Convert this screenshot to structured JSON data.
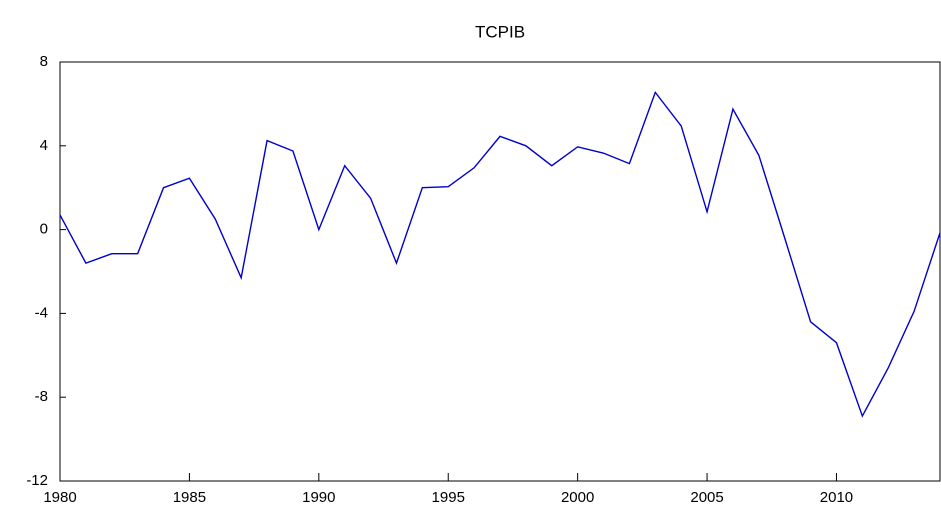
{
  "chart_data": {
    "type": "line",
    "title": "TCPIB",
    "x": [
      1980,
      1981,
      1982,
      1983,
      1984,
      1985,
      1986,
      1987,
      1988,
      1989,
      1990,
      1991,
      1992,
      1993,
      1994,
      1995,
      1996,
      1997,
      1998,
      1999,
      2000,
      2001,
      2002,
      2003,
      2004,
      2005,
      2006,
      2007,
      2008,
      2009,
      2010,
      2011,
      2012,
      2013,
      2014
    ],
    "series": [
      {
        "name": "TCPIB",
        "color": "#0000cc",
        "values": [
          0.7,
          -1.6,
          -1.15,
          -1.15,
          2.0,
          2.45,
          0.5,
          -2.3,
          4.25,
          3.75,
          0.0,
          3.05,
          1.5,
          -1.6,
          2.0,
          2.05,
          2.95,
          4.45,
          4.0,
          3.05,
          3.95,
          3.65,
          3.15,
          6.55,
          4.95,
          0.85,
          5.75,
          3.55,
          -0.4,
          -4.4,
          -5.4,
          -8.9,
          -6.6,
          -3.9,
          -0.15
        ]
      }
    ],
    "xlim": [
      1980,
      2014
    ],
    "xticks": [
      1980,
      1985,
      1990,
      1995,
      2000,
      2005,
      2010
    ],
    "ylim": [
      -12,
      8
    ],
    "yticks": [
      -12,
      -8,
      -4,
      0,
      4,
      8
    ],
    "grid": false
  }
}
